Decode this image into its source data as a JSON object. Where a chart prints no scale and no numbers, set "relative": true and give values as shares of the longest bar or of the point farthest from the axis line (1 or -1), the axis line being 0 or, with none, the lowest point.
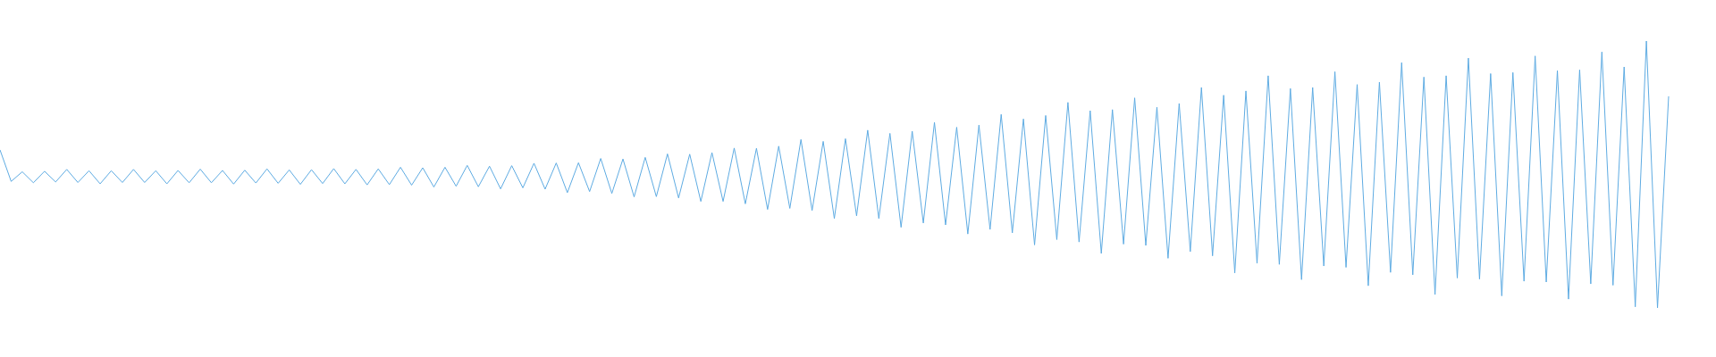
{
  "chart_data": {
    "type": "line",
    "relative": true,
    "color": "#5dabe2",
    "categories": [
      null,
      null,
      null,
      null,
      null,
      null,
      null,
      null,
      null,
      null,
      null,
      null,
      null,
      null,
      null,
      null,
      null,
      null,
      null,
      null,
      null,
      null,
      null,
      null,
      null,
      null,
      null,
      null,
      null,
      null,
      null,
      null,
      null,
      null,
      null,
      null,
      null,
      null,
      null,
      null,
      null,
      null,
      null,
      null,
      null,
      null,
      null,
      null,
      null,
      null,
      null,
      null,
      null,
      null,
      null,
      null,
      null,
      null,
      null,
      null,
      null,
      null,
      null,
      null,
      null,
      null,
      null,
      null,
      null,
      null,
      null,
      null,
      null,
      null,
      null,
      null,
      null,
      null,
      null,
      null,
      null,
      null,
      null,
      null,
      null,
      null,
      null,
      null,
      null,
      null,
      null,
      null,
      null,
      null,
      null,
      null,
      null,
      null,
      null,
      null,
      null,
      null,
      null,
      null,
      null,
      null,
      null,
      null,
      null,
      null,
      null,
      null,
      null,
      null,
      null,
      null,
      null,
      null,
      null,
      null,
      null,
      null,
      null,
      null,
      null,
      null,
      null,
      null,
      null,
      null,
      null,
      null,
      null,
      null,
      null,
      null,
      null,
      null,
      null,
      null,
      null,
      null,
      null,
      null,
      null,
      null,
      null,
      null,
      null,
      null,
      null
    ],
    "values": [
      0.592,
      0.474,
      0.51,
      0.469,
      0.512,
      0.472,
      0.519,
      0.47,
      0.514,
      0.465,
      0.514,
      0.47,
      0.519,
      0.47,
      0.514,
      0.465,
      0.515,
      0.469,
      0.52,
      0.469,
      0.515,
      0.464,
      0.516,
      0.468,
      0.521,
      0.467,
      0.517,
      0.463,
      0.518,
      0.466,
      0.522,
      0.465,
      0.519,
      0.461,
      0.521,
      0.462,
      0.527,
      0.46,
      0.525,
      0.453,
      0.527,
      0.456,
      0.534,
      0.454,
      0.531,
      0.446,
      0.533,
      0.45,
      0.542,
      0.445,
      0.543,
      0.432,
      0.544,
      0.436,
      0.56,
      0.429,
      0.558,
      0.416,
      0.564,
      0.417,
      0.577,
      0.412,
      0.576,
      0.399,
      0.582,
      0.399,
      0.599,
      0.39,
      0.598,
      0.369,
      0.606,
      0.373,
      0.631,
      0.365,
      0.624,
      0.335,
      0.634,
      0.345,
      0.666,
      0.335,
      0.654,
      0.302,
      0.662,
      0.318,
      0.695,
      0.311,
      0.677,
      0.277,
      0.685,
      0.294,
      0.725,
      0.281,
      0.708,
      0.236,
      0.721,
      0.256,
      0.77,
      0.247,
      0.739,
      0.204,
      0.743,
      0.239,
      0.787,
      0.234,
      0.752,
      0.186,
      0.766,
      0.211,
      0.826,
      0.195,
      0.797,
      0.131,
      0.813,
      0.167,
      0.87,
      0.163,
      0.822,
      0.106,
      0.826,
      0.157,
      0.885,
      0.152,
      0.837,
      0.083,
      0.846,
      0.133,
      0.919,
      0.124,
      0.865,
      0.05,
      0.87,
      0.112,
      0.936,
      0.108,
      0.878,
      0.045,
      0.882,
      0.1,
      0.944,
      0.097,
      0.889,
      0.033,
      0.892,
      0.09,
      0.959,
      0.085,
      0.903,
      0.004,
      1,
      0,
      0.793
    ]
  }
}
